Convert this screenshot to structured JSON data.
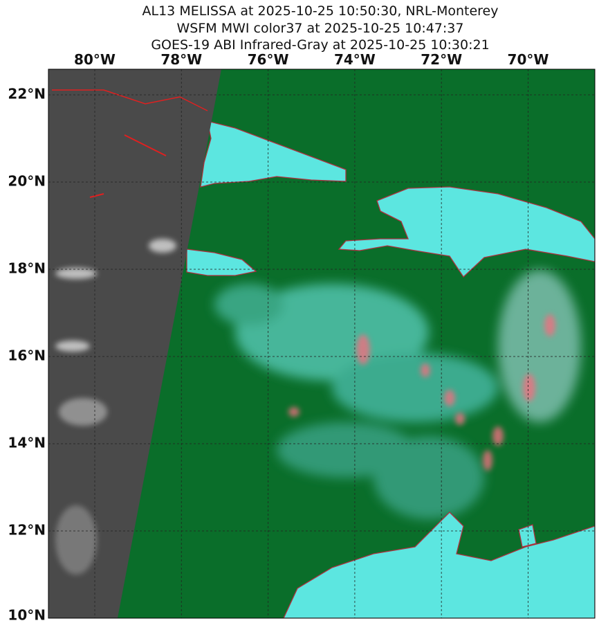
{
  "header": {
    "title_lines": [
      "AL13 MELISSA at 2025-10-25 10:50:30, NRL-Monterey",
      "WSFM MWI color37 at 2025-10-25 10:47:37",
      "GOES-19 ABI Infrared-Gray at 2025-10-25 10:30:21"
    ]
  },
  "map": {
    "longitude_labels": [
      "80°W",
      "78°W",
      "76°W",
      "74°W",
      "72°W",
      "70°W"
    ],
    "latitude_labels": [
      "22°N",
      "20°N",
      "18°N",
      "16°N",
      "14°N",
      "12°N",
      "10°N"
    ]
  }
}
